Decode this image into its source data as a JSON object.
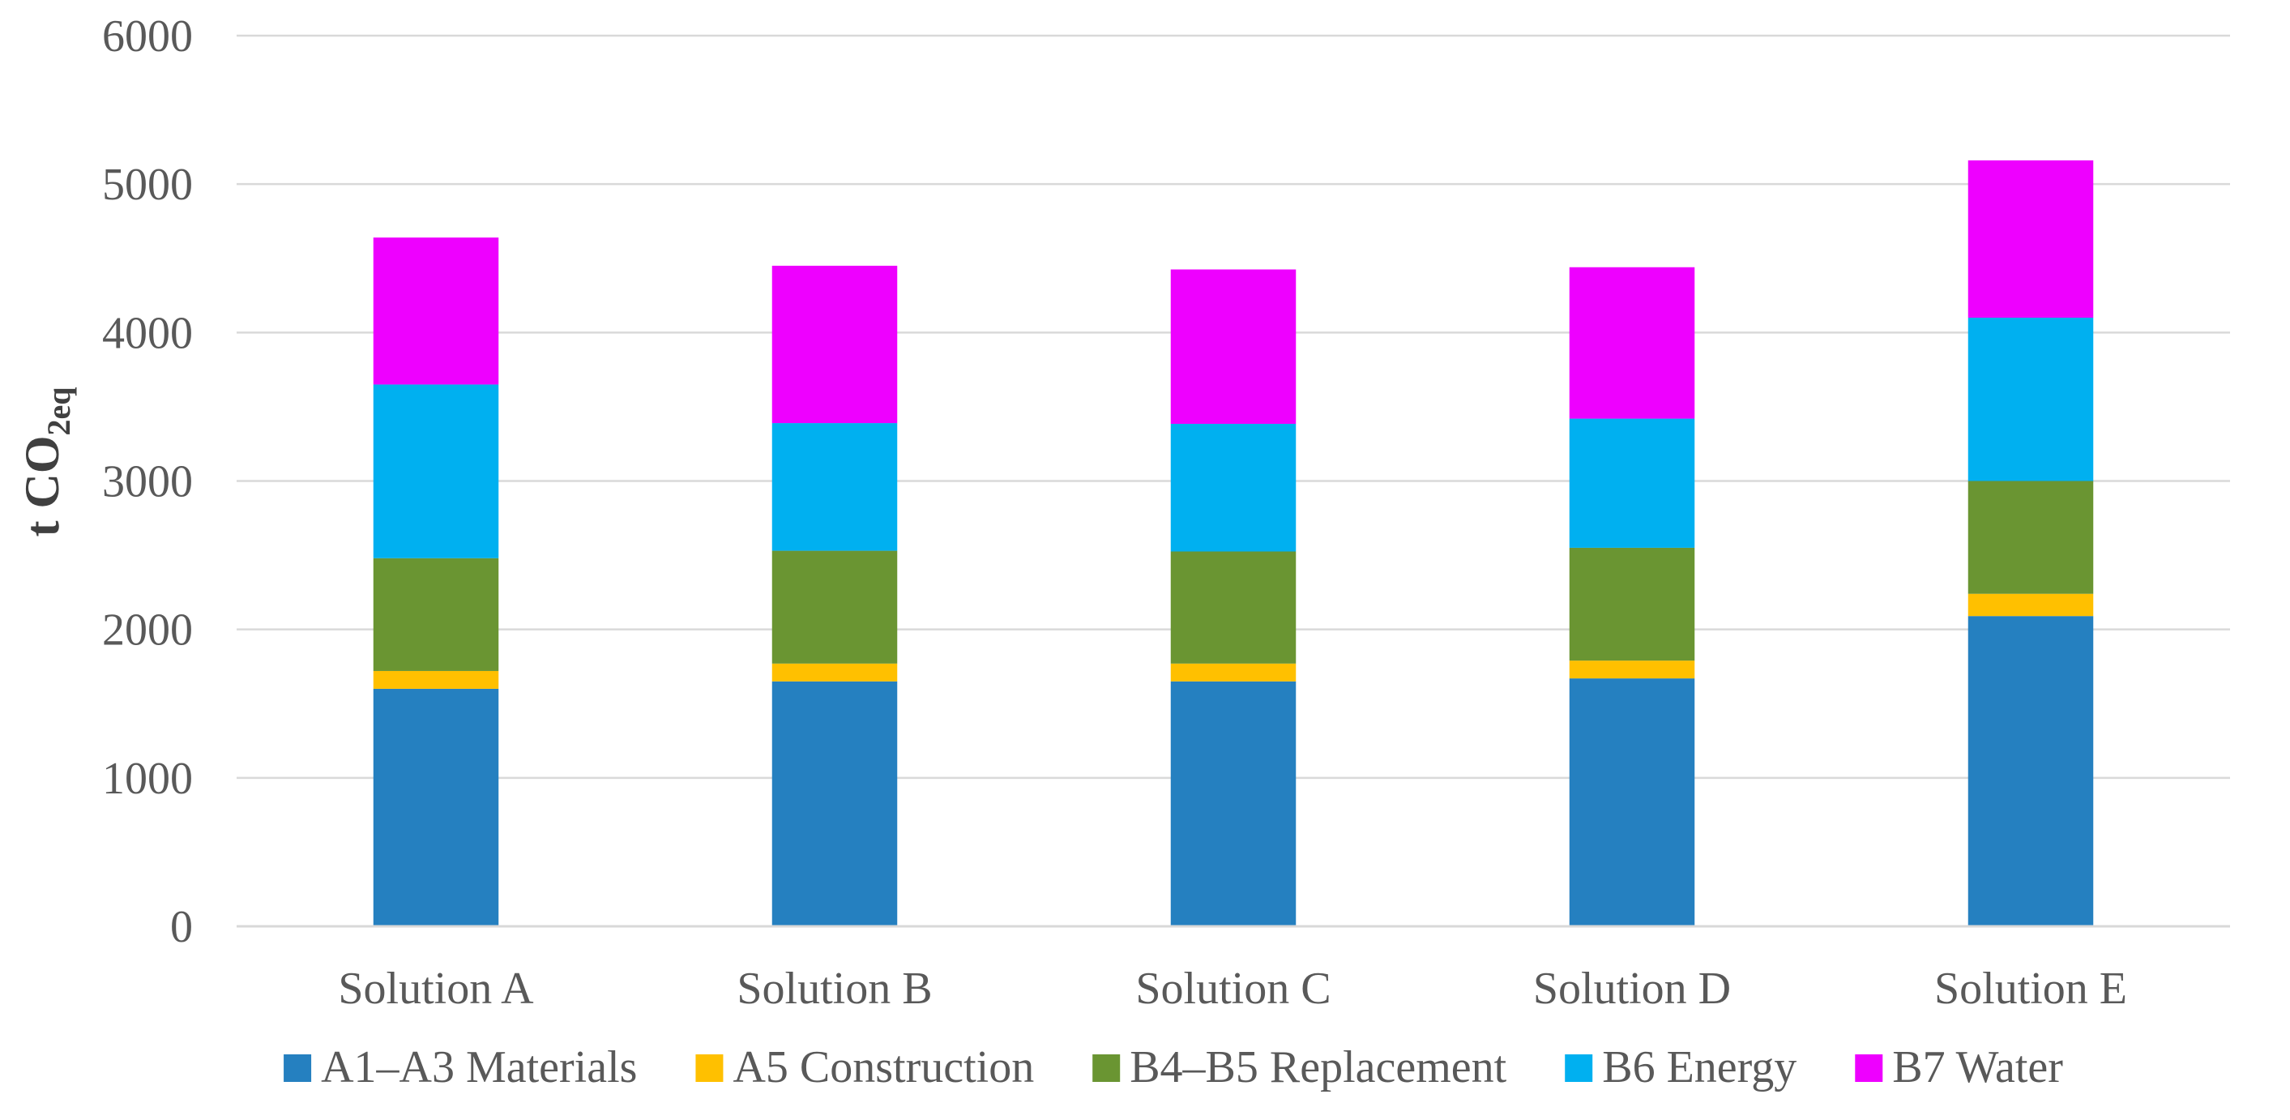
{
  "chart_data": {
    "type": "stacked-bar",
    "title": "",
    "xlabel": "",
    "ylabel": "t CO",
    "ylabel_subscript": "2eq",
    "ylim": [
      0,
      6000
    ],
    "yticks": [
      "0",
      "1000",
      "2000",
      "3000",
      "4000",
      "5000",
      "6000"
    ],
    "ytick_values": [
      0,
      1000,
      2000,
      3000,
      4000,
      5000,
      6000
    ],
    "grid": true,
    "legend_position": "bottom",
    "categories": [
      "Solution A",
      "Solution B",
      "Solution C",
      "Solution D",
      "Solution E"
    ],
    "series": [
      {
        "name": "A1–A3 Materials",
        "color": "#2580C0",
        "values": [
          1600,
          1650,
          1650,
          1670,
          2090
        ]
      },
      {
        "name": "A5 Construction",
        "color": "#FFC000",
        "values": [
          120,
          120,
          120,
          120,
          150
        ]
      },
      {
        "name": "B4–B5 Replacement",
        "color": "#6A9532",
        "values": [
          760,
          760,
          755,
          760,
          760
        ]
      },
      {
        "name": "B6 Energy",
        "color": "#00B0F0",
        "values": [
          1170,
          860,
          860,
          870,
          1100
        ]
      },
      {
        "name": "B7 Water",
        "color": "#EE00FF",
        "values": [
          990,
          1060,
          1040,
          1020,
          1060
        ]
      }
    ]
  }
}
